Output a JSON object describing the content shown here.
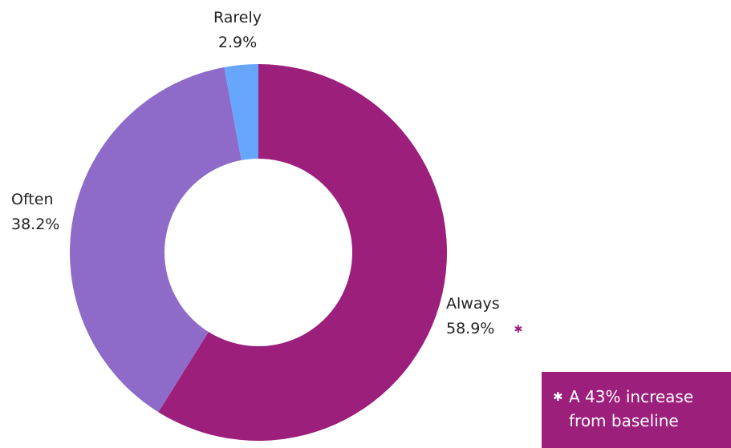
{
  "chart_data": {
    "type": "pie",
    "donut": true,
    "categories": [
      "Always",
      "Often",
      "Rarely"
    ],
    "values": [
      58.9,
      38.2,
      2.9
    ],
    "value_labels": [
      "58.9%",
      "38.2%",
      "2.9%"
    ],
    "colors": [
      "#9c1f7b",
      "#8e6bc9",
      "#66a6fc"
    ],
    "title": "",
    "legend": "none",
    "start_angle": "12 o'clock",
    "direction": "clockwise",
    "annotation": {
      "category": "Always",
      "marker": "✱",
      "marker_color": "#9c1f7b"
    }
  },
  "note": {
    "marker": "✱",
    "line1": "A 43% increase",
    "line2": "from baseline",
    "background_color": "#9c1f7b",
    "text_color": "#ffffff"
  }
}
